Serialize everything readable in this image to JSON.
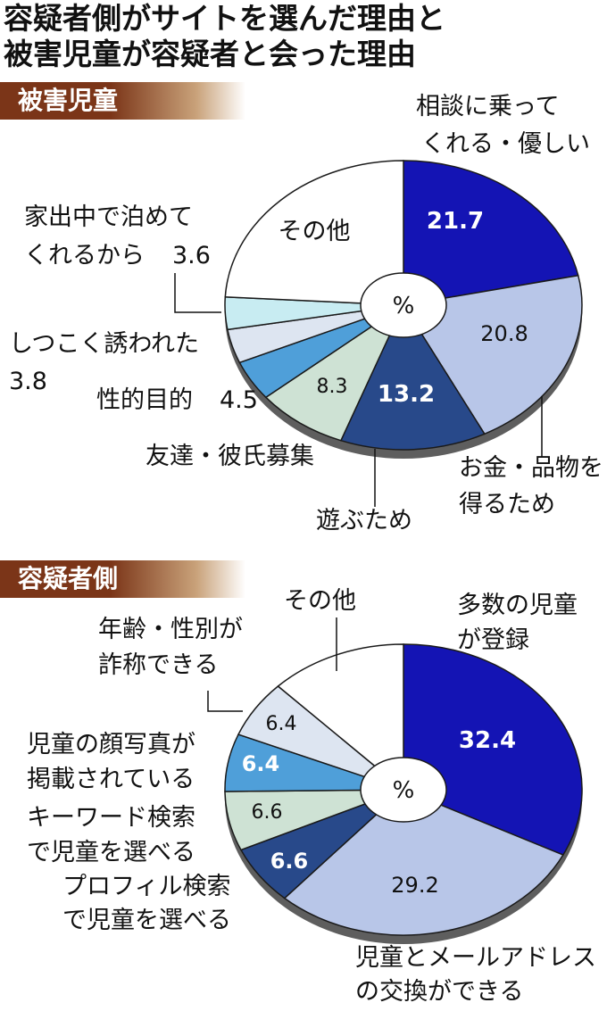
{
  "title_lines": [
    "容疑者側がサイトを選んだ理由と",
    "被害児童が容疑者と会った理由"
  ],
  "unit": "%",
  "chart_data": [
    {
      "type": "pie",
      "title": "被害児童",
      "categories": [
        "相談に乗ってくれる・優しい",
        "お金・品物を得るため",
        "遊ぶため",
        "友達・彼氏募集",
        "性的目的",
        "しつこく誘われた",
        "家出中で泊めてくれるから",
        "その他"
      ],
      "values": [
        21.7,
        20.8,
        13.2,
        8.3,
        4.5,
        3.8,
        3.6,
        null
      ],
      "value_labels": [
        "21.7",
        "20.8",
        "13.2",
        "8.3",
        "4.5",
        "3.8",
        "3.6",
        ""
      ],
      "colors": [
        "#1414b4",
        "#b8c6e8",
        "#28498a",
        "#cee2d4",
        "#4f9fd9",
        "#dde5f1",
        "#c8ecf2",
        "#ffffff"
      ],
      "label_lines": [
        [
          "相談に乗って",
          "くれる・優しい"
        ],
        [
          "お金・品物を",
          "得るため"
        ],
        [
          "遊ぶため"
        ],
        [
          "友達・彼氏募集"
        ],
        [
          "性的目的"
        ],
        [
          "しつこく誘われた"
        ],
        [
          "家出中で泊めて",
          "くれるから"
        ],
        [
          "その他"
        ]
      ]
    },
    {
      "type": "pie",
      "title": "容疑者側",
      "categories": [
        "多数の児童が登録",
        "児童とメールアドレスの交換ができる",
        "プロフィル検索で児童を選べる",
        "キーワード検索で児童を選べる",
        "児童の顔写真が掲載されている",
        "年齢・性別が詐称できる",
        "その他"
      ],
      "values": [
        32.4,
        29.2,
        6.6,
        6.6,
        6.4,
        6.4,
        null
      ],
      "value_labels": [
        "32.4",
        "29.2",
        "6.6",
        "6.6",
        "6.4",
        "6.4",
        ""
      ],
      "colors": [
        "#1414b4",
        "#b8c6e8",
        "#28498a",
        "#cee2d4",
        "#4f9fd9",
        "#dde5f1",
        "#ffffff"
      ],
      "label_lines": [
        [
          "多数の児童",
          "が登録"
        ],
        [
          "児童とメールアドレス",
          "の交換ができる"
        ],
        [
          "プロフィル検索",
          "で児童を選べる"
        ],
        [
          "キーワード検索",
          "で児童を選べる"
        ],
        [
          "児童の顔写真が",
          "掲載されている"
        ],
        [
          "年齢・性別が",
          "詐称できる"
        ],
        [
          "その他"
        ]
      ]
    }
  ]
}
